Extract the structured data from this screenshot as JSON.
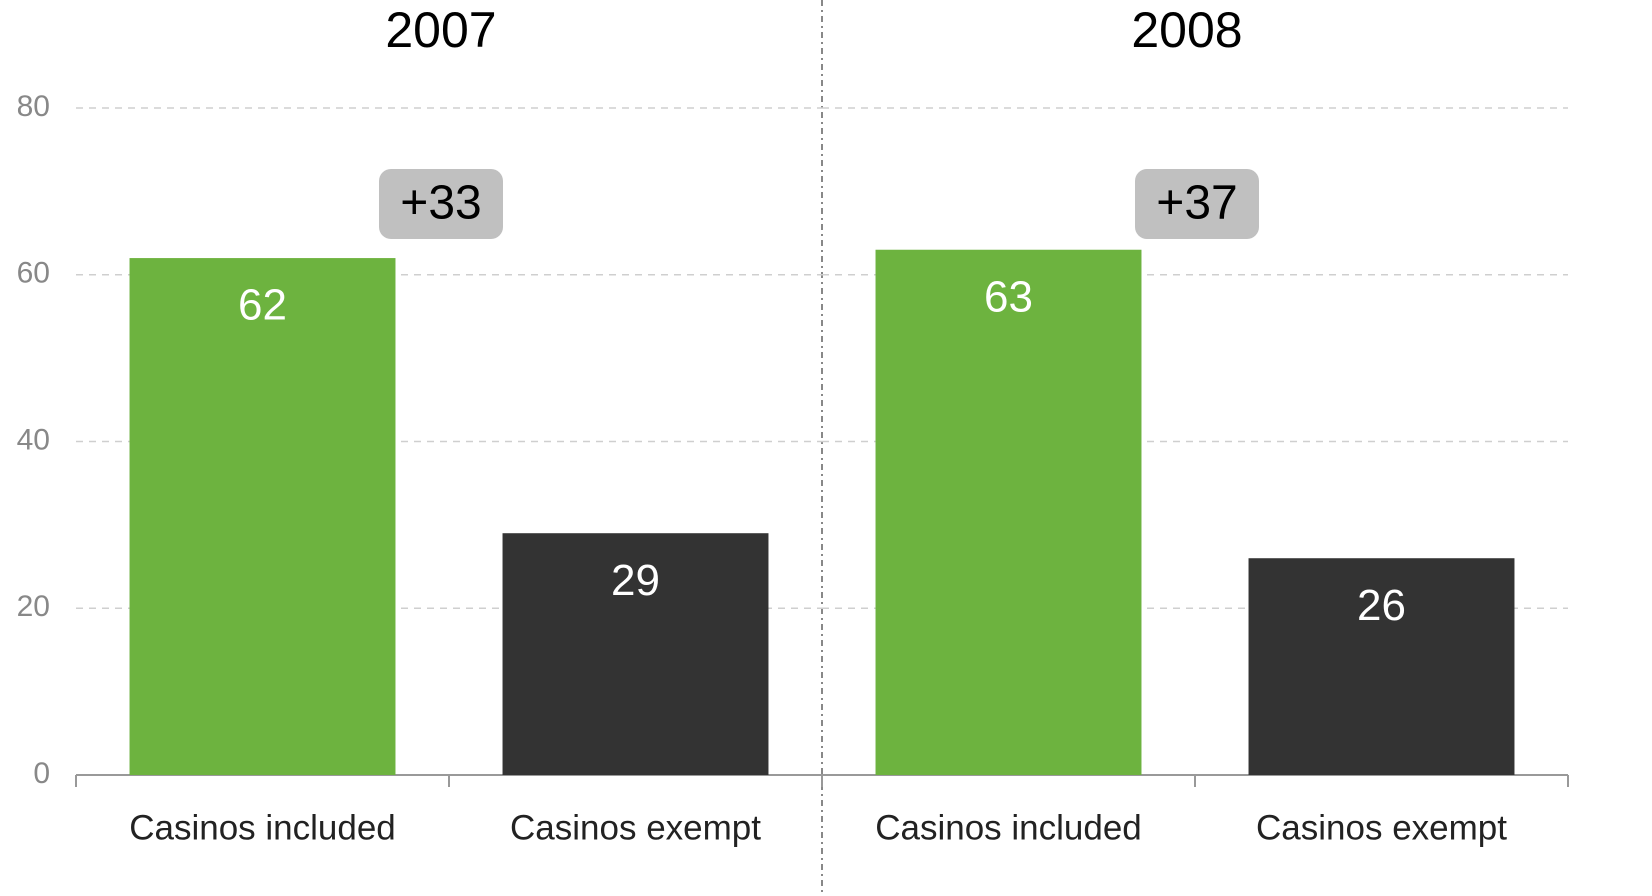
{
  "chart_data": [
    {
      "type": "bar",
      "title": "2007",
      "categories": [
        "Casinos included",
        "Casinos exempt"
      ],
      "values": [
        62,
        29
      ],
      "colors": [
        "#6db33f",
        "#333333"
      ],
      "annotation": "+33",
      "ylim": [
        0,
        80
      ],
      "yticks": [
        0,
        20,
        40,
        60,
        80
      ],
      "grid": true
    },
    {
      "type": "bar",
      "title": "2008",
      "categories": [
        "Casinos included",
        "Casinos exempt"
      ],
      "values": [
        63,
        26
      ],
      "colors": [
        "#6db33f",
        "#333333"
      ],
      "annotation": "+37",
      "ylim": [
        0,
        80
      ],
      "yticks": [
        0,
        20,
        40,
        60,
        80
      ],
      "grid": true
    }
  ]
}
